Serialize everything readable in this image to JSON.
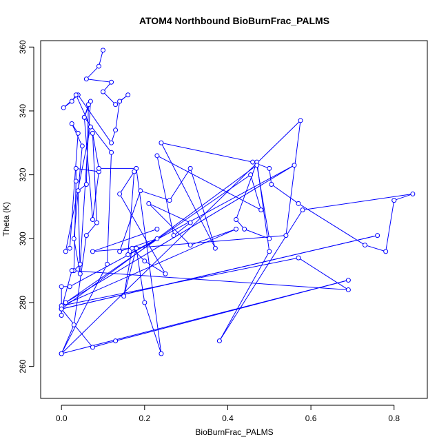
{
  "chart_data": {
    "type": "line",
    "title": "ATOM4 Northbound BioBurnFrac_PALMS",
    "xlabel": "BioBurnFrac_PALMS",
    "ylabel": "Theta (K)",
    "xlim": [
      -0.05,
      0.88
    ],
    "ylim": [
      250,
      362
    ],
    "xticks": [
      "0.0",
      "0.2",
      "0.4",
      "0.6",
      "0.8"
    ],
    "yticks": [
      "260",
      "280",
      "300",
      "320",
      "340",
      "360"
    ],
    "grid": false,
    "legend": "none",
    "line_color": "#0000ff",
    "marker": "open-circle",
    "series": [
      {
        "x": [
          0.1,
          0.09,
          0.06,
          0.12,
          0.1,
          0.13,
          0.16,
          0.14,
          0.13,
          0.12,
          0.04,
          0.005,
          0.025,
          0.035,
          0.07,
          0.01,
          0.02,
          0.04,
          0.025,
          0.05,
          0.03,
          0.045,
          0.04,
          0.06,
          0.065,
          0.055,
          0.07,
          0.045,
          0.03,
          0.035,
          0.035,
          0.09,
          0.075,
          0.055,
          0.12,
          0.11,
          0.0,
          0.03,
          0.06,
          0.085,
          0.075,
          0.09,
          0.18,
          0.24,
          0.2,
          0.18,
          0.15,
          0.17,
          0.2,
          0.25,
          0.14,
          0.175,
          0.16,
          0.23,
          0.14,
          0.19,
          0.26,
          0.31,
          0.37,
          0.24,
          0.46,
          0.5,
          0.505,
          0.57,
          0.73,
          0.78,
          0.8,
          0.8,
          0.845,
          0.58,
          0.38,
          0.5,
          0.47,
          0.42,
          0.44,
          0.5,
          0.47,
          0.0,
          0.0,
          0.0,
          0.02,
          0.56,
          0.01,
          0.455,
          0.48,
          0.23,
          0.27,
          0.31,
          0.21,
          0.31,
          0.42,
          0.0,
          0.57,
          0.69,
          0.025,
          0.0,
          0.76,
          0.0,
          0.075,
          0.13,
          0.69,
          0.0,
          0.575,
          0.54,
          0.075,
          0.23
        ],
        "y": [
          359,
          354,
          350,
          349,
          346,
          342,
          345,
          343,
          334,
          330,
          345,
          341,
          343,
          345,
          335,
          296,
          297,
          333,
          336,
          329,
          300,
          289,
          315,
          317,
          342,
          338,
          343,
          292,
          290,
          318,
          322,
          321,
          306,
          338,
          327,
          292,
          264,
          273,
          301,
          305,
          333,
          322,
          322,
          264,
          280,
          297,
          282,
          297,
          293,
          289,
          314,
          321,
          295,
          300,
          296,
          315,
          312,
          322,
          297,
          330,
          324,
          322,
          317,
          311,
          298,
          296,
          312,
          312,
          314,
          309,
          268,
          296,
          324,
          306,
          303,
          300,
          323,
          278,
          276,
          285,
          285,
          323,
          280,
          320,
          309,
          326,
          301,
          305,
          311,
          298,
          303,
          279,
          294,
          284,
          290,
          278,
          301,
          278,
          266,
          268,
          287,
          264,
          337,
          301,
          296,
          303
        ]
      }
    ]
  }
}
